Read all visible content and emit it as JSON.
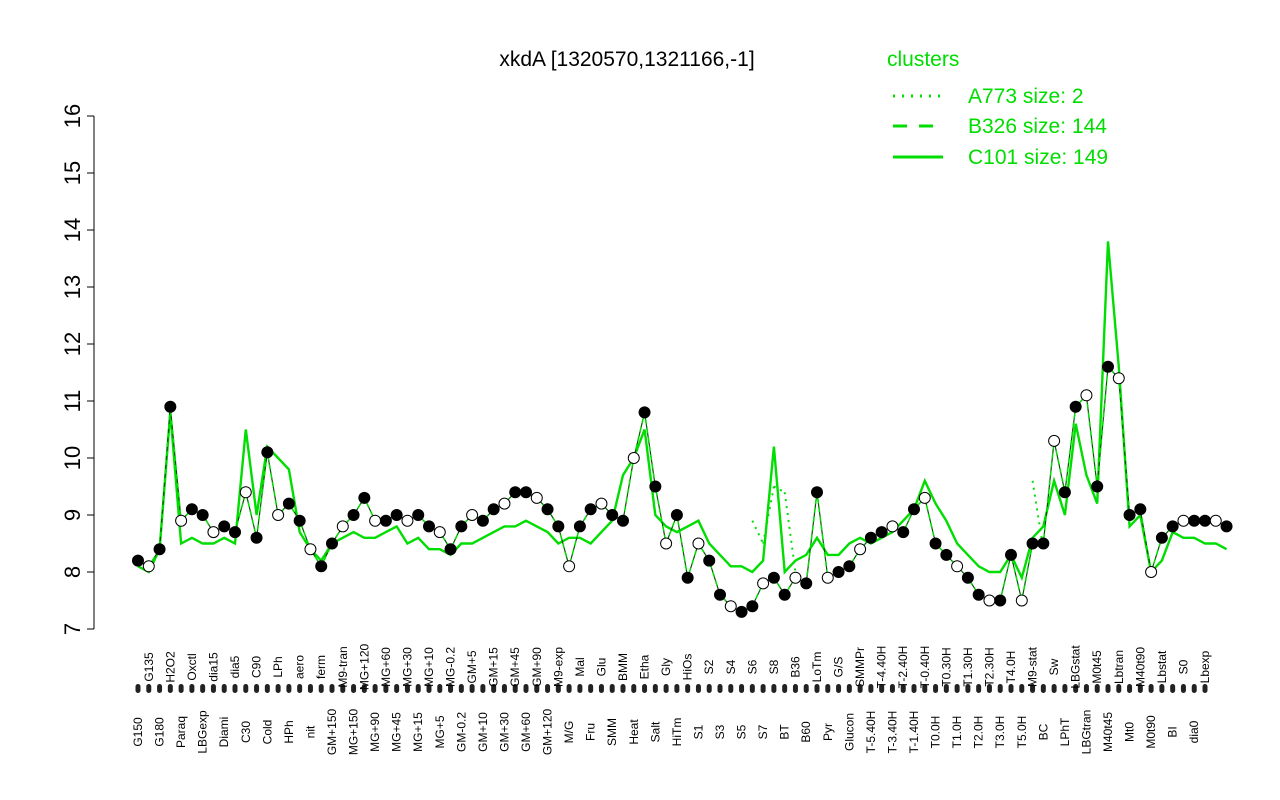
{
  "chart_data": {
    "type": "line",
    "title": "xkdA [1320570,1321166,-1]",
    "xlabel": "",
    "ylabel": "",
    "ylim": [
      7,
      16
    ],
    "yticks": [
      7,
      8,
      9,
      10,
      11,
      12,
      13,
      14,
      15,
      16
    ],
    "legend": {
      "title": "clusters",
      "position": "top-right",
      "color": "#00dd00",
      "entries": [
        {
          "label": "A773 size: 2",
          "style": "dotted"
        },
        {
          "label": "B326 size: 144",
          "style": "dashed"
        },
        {
          "label": "C101 size: 149",
          "style": "solid"
        }
      ]
    },
    "xtick_labels": [
      "G150",
      "G135",
      "G180",
      "H2O2",
      "Paraq",
      "Oxctl",
      "LBGexp",
      "dia15",
      "Diami",
      "dia5",
      "C30",
      "C90",
      "Cold",
      "LPh",
      "HPh",
      "aero",
      "nit",
      "ferm",
      "GM+150",
      "M9-tran",
      "MG+150",
      "MG+120",
      "MG+90",
      "MG+60",
      "MG+45",
      "MG+30",
      "MG+15",
      "MG+10",
      "MG+5",
      "MG-0.2",
      "GM-0.2",
      "GM+5",
      "GM+10",
      "GM+15",
      "GM+30",
      "GM+45",
      "GM+60",
      "GM+90",
      "GM+120",
      "M9-exp",
      "M/G",
      "Mal",
      "Fru",
      "Glu",
      "SMM",
      "BMM",
      "Heat",
      "Etha",
      "Salt",
      "Gly",
      "HiTm",
      "HiOs",
      "S1",
      "S2",
      "S3",
      "S4",
      "S5",
      "S6",
      "S7",
      "S8",
      "BT",
      "B36",
      "B60",
      "LoTm",
      "Pyr",
      "G/S",
      "Glucon",
      "SMMPr",
      "T-5.40H",
      "T-4.40H",
      "T-3.40H",
      "T-2.40H",
      "T-1.40H",
      "T-0.40H",
      "T0.0H",
      "T0.30H",
      "T1.0H",
      "T1.30H",
      "T2.0H",
      "T2.30H",
      "T3.0H",
      "T4.0H",
      "T5.0H",
      "M9-stat",
      "BC",
      "Sw",
      "LPhT",
      "LBGstat",
      "LBGtran",
      "M0t45",
      "M40t45",
      "Lbtran",
      "Mt0",
      "M40t90",
      "M0t90",
      "Lbstat",
      "BI",
      "S0",
      "dia0",
      "Lbexp"
    ],
    "series": [
      {
        "name": "B326 size: 144",
        "style": "dashed",
        "x": [
          1,
          2,
          3,
          4,
          5,
          6,
          7,
          8,
          9,
          10,
          11,
          12,
          13,
          14,
          15,
          16,
          17,
          18,
          19,
          20,
          21,
          22,
          23,
          24,
          25,
          26,
          27,
          28,
          29,
          30,
          31,
          32,
          33,
          34,
          35,
          36,
          37,
          38,
          39,
          40,
          41,
          42,
          43,
          44,
          45,
          46,
          47,
          48,
          49,
          50,
          51,
          52,
          53,
          54,
          55,
          56,
          57,
          58,
          59,
          60,
          61,
          62,
          63,
          64,
          65,
          66,
          67,
          68,
          69,
          70,
          71,
          72,
          73,
          74,
          75,
          76,
          77,
          78,
          79,
          80,
          81,
          82,
          83,
          84,
          85,
          86,
          87,
          88,
          89,
          90,
          91,
          92,
          93,
          94,
          95,
          96,
          97,
          98,
          99,
          100,
          101,
          102
        ],
        "y": [
          8.2,
          8.1,
          8.4,
          10.9,
          8.9,
          9.1,
          9.0,
          8.7,
          8.8,
          8.7,
          9.4,
          8.6,
          10.1,
          9.0,
          9.2,
          8.9,
          8.4,
          8.1,
          8.5,
          8.8,
          9.0,
          9.3,
          8.9,
          8.9,
          9.0,
          8.9,
          9.0,
          8.8,
          8.7,
          8.4,
          8.8,
          9.0,
          8.9,
          9.1,
          9.2,
          9.4,
          9.4,
          9.3,
          9.1,
          8.8,
          8.1,
          8.8,
          9.1,
          9.2,
          9.0,
          8.9,
          10.0,
          10.8,
          9.5,
          8.5,
          9.0,
          7.9,
          8.5,
          8.2,
          7.6,
          7.4,
          7.3,
          7.4,
          7.8,
          7.9,
          7.6,
          7.9,
          7.8,
          9.4,
          7.9,
          8.0,
          8.1,
          8.4,
          8.6,
          8.7,
          8.8,
          8.7,
          9.1,
          9.3,
          8.5,
          8.3,
          8.1,
          7.9,
          7.6,
          7.5,
          7.5,
          8.3,
          7.5,
          8.5,
          8.5,
          10.3,
          9.4,
          10.9,
          11.1,
          9.5,
          11.6,
          11.4,
          9.0,
          9.1,
          8.0,
          8.6,
          8.8,
          8.9,
          8.9,
          8.9,
          8.9,
          8.8
        ]
      },
      {
        "name": "C101 size: 149",
        "style": "solid",
        "x": [
          1,
          2,
          3,
          4,
          5,
          6,
          7,
          8,
          9,
          10,
          11,
          12,
          13,
          14,
          15,
          16,
          17,
          18,
          19,
          20,
          21,
          22,
          23,
          24,
          25,
          26,
          27,
          28,
          29,
          30,
          31,
          32,
          33,
          34,
          35,
          36,
          37,
          38,
          39,
          40,
          41,
          42,
          43,
          44,
          45,
          46,
          47,
          48,
          49,
          50,
          51,
          52,
          53,
          54,
          55,
          56,
          57,
          58,
          59,
          60,
          61,
          62,
          63,
          64,
          65,
          66,
          67,
          68,
          69,
          70,
          71,
          72,
          73,
          74,
          75,
          76,
          77,
          78,
          79,
          80,
          81,
          82,
          83,
          84,
          85,
          86,
          87,
          88,
          89,
          90,
          91,
          92,
          93,
          94,
          95,
          96,
          97,
          98,
          99,
          100,
          101,
          102
        ],
        "y": [
          8.1,
          8.0,
          8.4,
          10.8,
          8.5,
          8.6,
          8.5,
          8.5,
          8.6,
          8.5,
          10.5,
          9.0,
          10.2,
          10.0,
          9.8,
          8.7,
          8.4,
          8.2,
          8.5,
          8.6,
          8.7,
          8.6,
          8.6,
          8.7,
          8.8,
          8.5,
          8.6,
          8.4,
          8.4,
          8.3,
          8.5,
          8.5,
          8.6,
          8.7,
          8.8,
          8.8,
          8.9,
          8.8,
          8.7,
          8.5,
          8.6,
          8.6,
          8.5,
          8.7,
          8.9,
          9.7,
          10.0,
          10.5,
          9.0,
          8.8,
          8.7,
          8.8,
          8.9,
          8.5,
          8.3,
          8.1,
          8.1,
          8.0,
          8.2,
          10.2,
          8.0,
          8.2,
          8.3,
          8.6,
          8.3,
          8.3,
          8.5,
          8.6,
          8.5,
          8.6,
          8.7,
          8.9,
          9.1,
          9.6,
          9.2,
          8.9,
          8.5,
          8.3,
          8.1,
          8.0,
          8.0,
          8.3,
          7.9,
          8.6,
          8.8,
          9.6,
          9.0,
          10.6,
          9.7,
          9.2,
          13.8,
          11.6,
          8.8,
          9.0,
          8.0,
          8.2,
          8.7,
          8.6,
          8.6,
          8.5,
          8.5,
          8.4
        ]
      },
      {
        "name": "A773 size: 2",
        "style": "dotted",
        "x": [
          58,
          59,
          60,
          61,
          62,
          84,
          85
        ],
        "y": [
          8.9,
          8.5,
          9.5,
          9.4,
          8.0,
          9.6,
          8.4
        ]
      }
    ]
  }
}
